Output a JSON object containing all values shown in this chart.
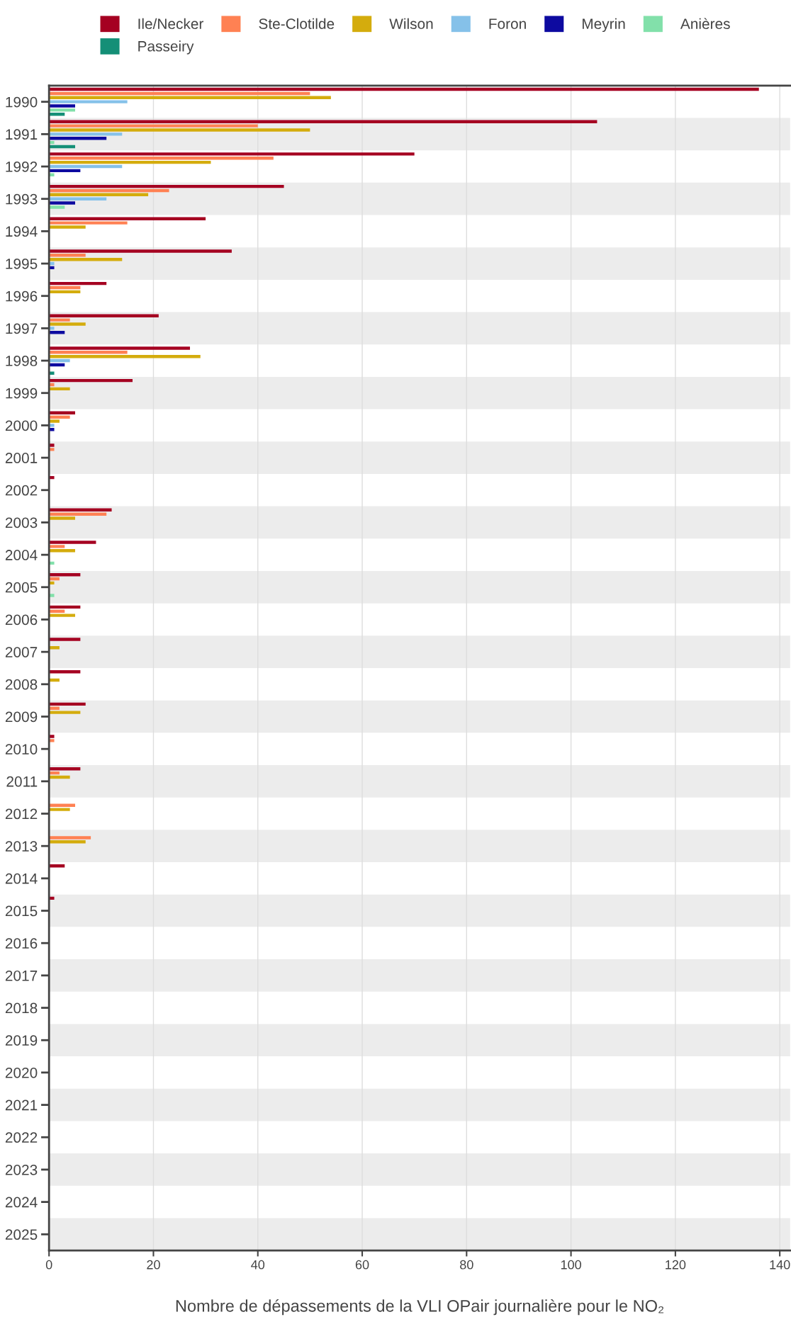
{
  "chart_data": {
    "type": "bar",
    "orientation": "horizontal",
    "xlabel": "Nombre de dépassements de la VLI OPair journalière pour le NO₂",
    "categories": [
      "1990",
      "1991",
      "1992",
      "1993",
      "1994",
      "1995",
      "1996",
      "1997",
      "1998",
      "1999",
      "2000",
      "2001",
      "2002",
      "2003",
      "2004",
      "2005",
      "2006",
      "2007",
      "2008",
      "2009",
      "2010",
      "2011",
      "2012",
      "2013",
      "2014",
      "2015",
      "2016",
      "2017",
      "2018",
      "2019",
      "2020",
      "2021",
      "2022",
      "2023",
      "2024",
      "2025"
    ],
    "series": [
      {
        "name": "Ile/Necker",
        "color": "#a50021",
        "values": [
          136,
          105,
          70,
          45,
          30,
          35,
          11,
          21,
          27,
          16,
          5,
          1,
          1,
          12,
          9,
          6,
          6,
          6,
          6,
          7,
          1,
          6,
          0,
          0,
          3,
          1,
          0,
          0,
          0,
          0,
          0,
          0,
          0,
          0,
          0,
          0
        ]
      },
      {
        "name": "Ste-Clotilde",
        "color": "#ff8153",
        "values": [
          50,
          40,
          43,
          23,
          15,
          7,
          6,
          4,
          15,
          1,
          4,
          1,
          0,
          11,
          3,
          2,
          3,
          0,
          0,
          2,
          1,
          2,
          5,
          8,
          0,
          0,
          0,
          0,
          0,
          0,
          0,
          0,
          0,
          0,
          0,
          0
        ]
      },
      {
        "name": "Wilson",
        "color": "#d4ac0d",
        "values": [
          54,
          50,
          31,
          19,
          7,
          14,
          6,
          7,
          29,
          4,
          2,
          0,
          0,
          5,
          5,
          1,
          5,
          2,
          2,
          6,
          0,
          4,
          4,
          7,
          0,
          0,
          0,
          0,
          0,
          0,
          0,
          0,
          0,
          0,
          0,
          0
        ]
      },
      {
        "name": "Foron",
        "color": "#85c1e9",
        "values": [
          15,
          14,
          14,
          11,
          0,
          1,
          0,
          1,
          4,
          0,
          1,
          0,
          0,
          0,
          0,
          0,
          0,
          0,
          0,
          0,
          0,
          0,
          0,
          0,
          0,
          0,
          0,
          0,
          0,
          0,
          0,
          0,
          0,
          0,
          0,
          0
        ]
      },
      {
        "name": "Meyrin",
        "color": "#0d0aa0",
        "values": [
          5,
          11,
          6,
          5,
          0,
          1,
          0,
          3,
          3,
          0,
          1,
          0,
          0,
          0,
          0,
          0,
          0,
          0,
          0,
          0,
          0,
          0,
          0,
          0,
          0,
          0,
          0,
          0,
          0,
          0,
          0,
          0,
          0,
          0,
          0,
          0
        ]
      },
      {
        "name": "Anières",
        "color": "#82e0aa",
        "values": [
          5,
          1,
          1,
          3,
          0,
          0,
          0,
          0,
          0,
          0,
          0,
          0,
          0,
          0,
          1,
          1,
          0,
          0,
          0,
          0,
          0,
          0,
          0,
          0,
          0,
          0,
          0,
          0,
          0,
          0,
          0,
          0,
          0,
          0,
          0,
          0
        ]
      },
      {
        "name": "Passeiry",
        "color": "#148f77",
        "values": [
          3,
          5,
          0,
          0,
          0,
          0,
          0,
          0,
          1,
          0,
          0,
          0,
          0,
          0,
          0,
          0,
          0,
          0,
          0,
          0,
          0,
          0,
          0,
          0,
          0,
          0,
          0,
          0,
          0,
          0,
          0,
          0,
          0,
          0,
          0,
          0
        ]
      }
    ],
    "xlim": [
      0,
      142
    ],
    "xticks": [
      0,
      20,
      40,
      60,
      80,
      100,
      120,
      140
    ],
    "grid": "x",
    "legend": "top"
  }
}
